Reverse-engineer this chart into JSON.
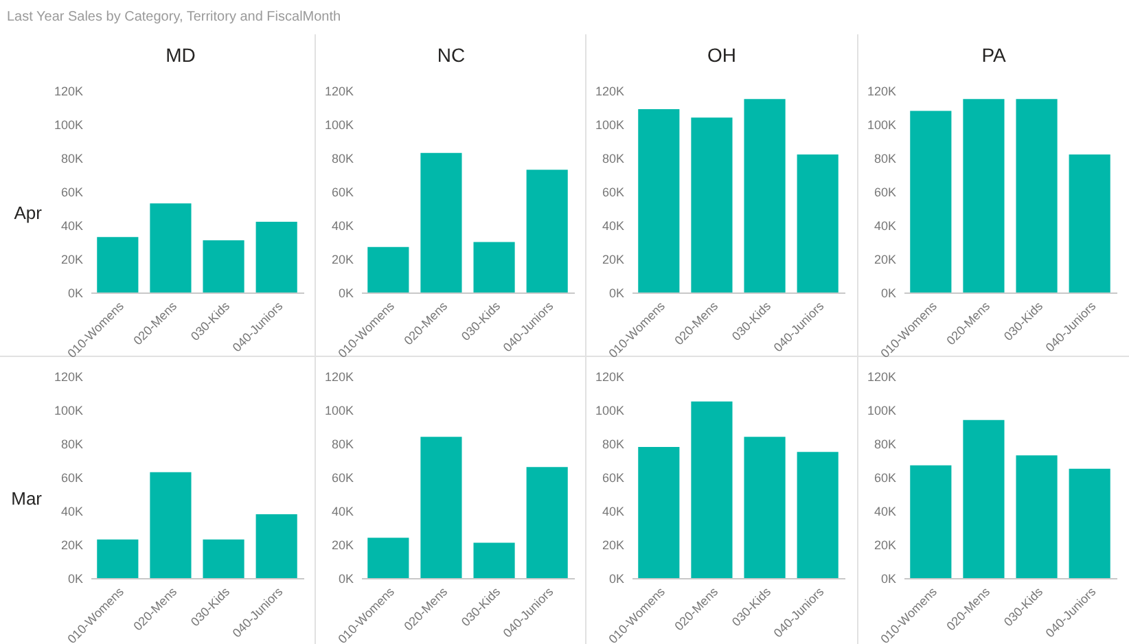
{
  "chart_data": [
    {
      "type": "bar",
      "title": "MD",
      "ylabel": "Apr",
      "annotations": [
        "Last Year Sales by Category, Territory and FiscalMonth"
      ],
      "categories": [
        "010-Womens",
        "020-Mens",
        "030-Kids",
        "040-Juniors"
      ],
      "values": [
        33000,
        53000,
        31000,
        42000
      ],
      "color": "#01b8aa",
      "ylim": [
        0,
        120000
      ],
      "yticks": [
        {
          "value": 0,
          "label": "0K"
        },
        {
          "value": 20000,
          "label": "20K"
        },
        {
          "value": 40000,
          "label": "40K"
        },
        {
          "value": 60000,
          "label": "60K"
        },
        {
          "value": 80000,
          "label": "80K"
        },
        {
          "value": 100000,
          "label": "100K"
        },
        {
          "value": 120000,
          "label": "120K"
        }
      ]
    },
    {
      "type": "bar",
      "title": "NC",
      "categories": [
        "010-Womens",
        "020-Mens",
        "030-Kids",
        "040-Juniors"
      ],
      "values": [
        27000,
        83000,
        30000,
        73000
      ],
      "color": "#01b8aa",
      "ylim": [
        0,
        120000
      ],
      "yticks": [
        {
          "value": 0,
          "label": "0K"
        },
        {
          "value": 20000,
          "label": "20K"
        },
        {
          "value": 40000,
          "label": "40K"
        },
        {
          "value": 60000,
          "label": "60K"
        },
        {
          "value": 80000,
          "label": "80K"
        },
        {
          "value": 100000,
          "label": "100K"
        },
        {
          "value": 120000,
          "label": "120K"
        }
      ]
    },
    {
      "type": "bar",
      "title": "OH",
      "categories": [
        "010-Womens",
        "020-Mens",
        "030-Kids",
        "040-Juniors"
      ],
      "values": [
        109000,
        104000,
        115000,
        82000
      ],
      "color": "#01b8aa",
      "ylim": [
        0,
        120000
      ],
      "yticks": [
        {
          "value": 0,
          "label": "0K"
        },
        {
          "value": 20000,
          "label": "20K"
        },
        {
          "value": 40000,
          "label": "40K"
        },
        {
          "value": 60000,
          "label": "60K"
        },
        {
          "value": 80000,
          "label": "80K"
        },
        {
          "value": 100000,
          "label": "100K"
        },
        {
          "value": 120000,
          "label": "120K"
        }
      ]
    },
    {
      "type": "bar",
      "title": "PA",
      "categories": [
        "010-Womens",
        "020-Mens",
        "030-Kids",
        "040-Juniors"
      ],
      "values": [
        108000,
        115000,
        115000,
        82000
      ],
      "color": "#01b8aa",
      "ylim": [
        0,
        120000
      ],
      "yticks": [
        {
          "value": 0,
          "label": "0K"
        },
        {
          "value": 20000,
          "label": "20K"
        },
        {
          "value": 40000,
          "label": "40K"
        },
        {
          "value": 60000,
          "label": "60K"
        },
        {
          "value": 80000,
          "label": "80K"
        },
        {
          "value": 100000,
          "label": "100K"
        },
        {
          "value": 120000,
          "label": "120K"
        }
      ]
    },
    {
      "type": "bar",
      "ylabel": "Mar",
      "categories": [
        "010-Womens",
        "020-Mens",
        "030-Kids",
        "040-Juniors"
      ],
      "values": [
        23000,
        63000,
        23000,
        38000
      ],
      "color": "#01b8aa",
      "ylim": [
        0,
        120000
      ],
      "yticks": [
        {
          "value": 0,
          "label": "0K"
        },
        {
          "value": 20000,
          "label": "20K"
        },
        {
          "value": 40000,
          "label": "40K"
        },
        {
          "value": 60000,
          "label": "60K"
        },
        {
          "value": 80000,
          "label": "80K"
        },
        {
          "value": 100000,
          "label": "100K"
        },
        {
          "value": 120000,
          "label": "120K"
        }
      ]
    },
    {
      "type": "bar",
      "categories": [
        "010-Womens",
        "020-Mens",
        "030-Kids",
        "040-Juniors"
      ],
      "values": [
        24000,
        84000,
        21000,
        66000
      ],
      "color": "#01b8aa",
      "ylim": [
        0,
        120000
      ],
      "yticks": [
        {
          "value": 0,
          "label": "0K"
        },
        {
          "value": 20000,
          "label": "20K"
        },
        {
          "value": 40000,
          "label": "40K"
        },
        {
          "value": 60000,
          "label": "60K"
        },
        {
          "value": 80000,
          "label": "80K"
        },
        {
          "value": 100000,
          "label": "100K"
        },
        {
          "value": 120000,
          "label": "120K"
        }
      ]
    },
    {
      "type": "bar",
      "categories": [
        "010-Womens",
        "020-Mens",
        "030-Kids",
        "040-Juniors"
      ],
      "values": [
        78000,
        105000,
        84000,
        75000
      ],
      "color": "#01b8aa",
      "ylim": [
        0,
        120000
      ],
      "yticks": [
        {
          "value": 0,
          "label": "0K"
        },
        {
          "value": 20000,
          "label": "20K"
        },
        {
          "value": 40000,
          "label": "40K"
        },
        {
          "value": 60000,
          "label": "60K"
        },
        {
          "value": 80000,
          "label": "80K"
        },
        {
          "value": 100000,
          "label": "100K"
        },
        {
          "value": 120000,
          "label": "120K"
        }
      ]
    },
    {
      "type": "bar",
      "categories": [
        "010-Womens",
        "020-Mens",
        "030-Kids",
        "040-Juniors"
      ],
      "values": [
        67000,
        94000,
        73000,
        65000
      ],
      "color": "#01b8aa",
      "ylim": [
        0,
        120000
      ],
      "yticks": [
        {
          "value": 0,
          "label": "0K"
        },
        {
          "value": 20000,
          "label": "20K"
        },
        {
          "value": 40000,
          "label": "40K"
        },
        {
          "value": 60000,
          "label": "60K"
        },
        {
          "value": 80000,
          "label": "80K"
        },
        {
          "value": 100000,
          "label": "100K"
        },
        {
          "value": 120000,
          "label": "120K"
        }
      ]
    }
  ]
}
